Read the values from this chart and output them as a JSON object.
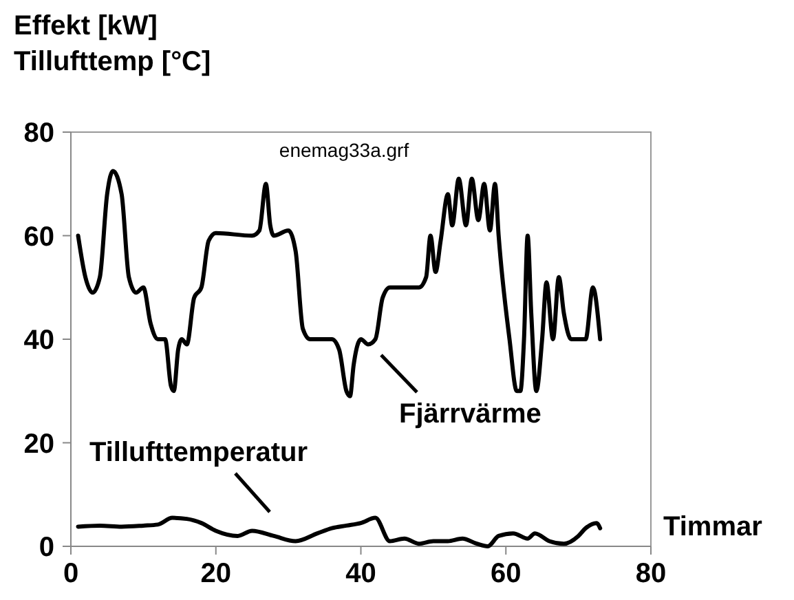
{
  "chart_data": {
    "type": "line",
    "ylabel": "Effekt [kW]\nTillufttemp [°C]",
    "xlabel": "Timmar",
    "annotations": [
      "enemag33a.grf"
    ],
    "xlim": [
      0,
      80
    ],
    "xticks": [
      0,
      20,
      40,
      60,
      80
    ],
    "ylim": [
      0,
      80
    ],
    "yticks": [
      0,
      20,
      40,
      60,
      80
    ],
    "grid": false,
    "marker": "none",
    "line_style": "solid",
    "series": [
      {
        "name": "Fjärrvärme",
        "color": "#000000",
        "x": [
          1,
          2,
          3,
          4,
          5,
          5.8,
          7,
          8,
          9,
          10,
          11,
          12,
          13,
          13.8,
          14.2,
          14.8,
          15.3,
          16,
          17,
          18,
          19,
          20,
          25,
          26,
          26.9,
          27.5,
          28,
          30,
          31,
          32,
          33,
          36,
          37,
          38,
          38.5,
          39,
          40,
          41,
          42,
          43,
          44,
          48,
          49,
          49.6,
          50.3,
          51,
          52,
          52.6,
          53.5,
          54.5,
          55.3,
          56.2,
          57,
          57.8,
          58.5,
          59,
          60.5,
          61.5,
          62,
          62.5,
          63,
          63.5,
          64.2,
          65,
          65.6,
          66.5,
          67.3,
          68,
          69,
          71,
          72,
          73
        ],
        "values": [
          60,
          52,
          49,
          52,
          68,
          72.5,
          68,
          52,
          49,
          50,
          43,
          40,
          40,
          31,
          30,
          38,
          40,
          39,
          48,
          50,
          59,
          60.5,
          60,
          61,
          70,
          62,
          60,
          61,
          57,
          42,
          40,
          40,
          38,
          30,
          29,
          35,
          40,
          39,
          40,
          48,
          50,
          50,
          52,
          60,
          53,
          59,
          68,
          62,
          71,
          62,
          71,
          63,
          70,
          61,
          70,
          60,
          40,
          30,
          30,
          40,
          60,
          45,
          30,
          40,
          51,
          40,
          52,
          45,
          40,
          40,
          50,
          40
        ]
      },
      {
        "name": "Tillufttemperatur",
        "color": "#000000",
        "x": [
          1,
          4,
          7,
          10,
          12,
          14,
          16,
          18,
          20,
          23,
          25,
          28,
          31,
          34,
          36,
          38,
          40,
          42,
          44,
          46,
          48,
          50,
          52,
          54,
          56,
          57.5,
          59,
          61,
          63,
          64,
          66,
          68,
          70,
          71,
          72.5,
          73
        ],
        "values": [
          3.8,
          4,
          3.8,
          4,
          4.2,
          5.5,
          5.3,
          4.5,
          3,
          2,
          3,
          2,
          1,
          2.5,
          3.5,
          4,
          4.5,
          5.5,
          1,
          1.5,
          0.5,
          1,
          1,
          1.5,
          0.5,
          0,
          2,
          2.5,
          1.5,
          2.5,
          1,
          0.5,
          2,
          3.5,
          4.5,
          3.5
        ]
      }
    ]
  }
}
